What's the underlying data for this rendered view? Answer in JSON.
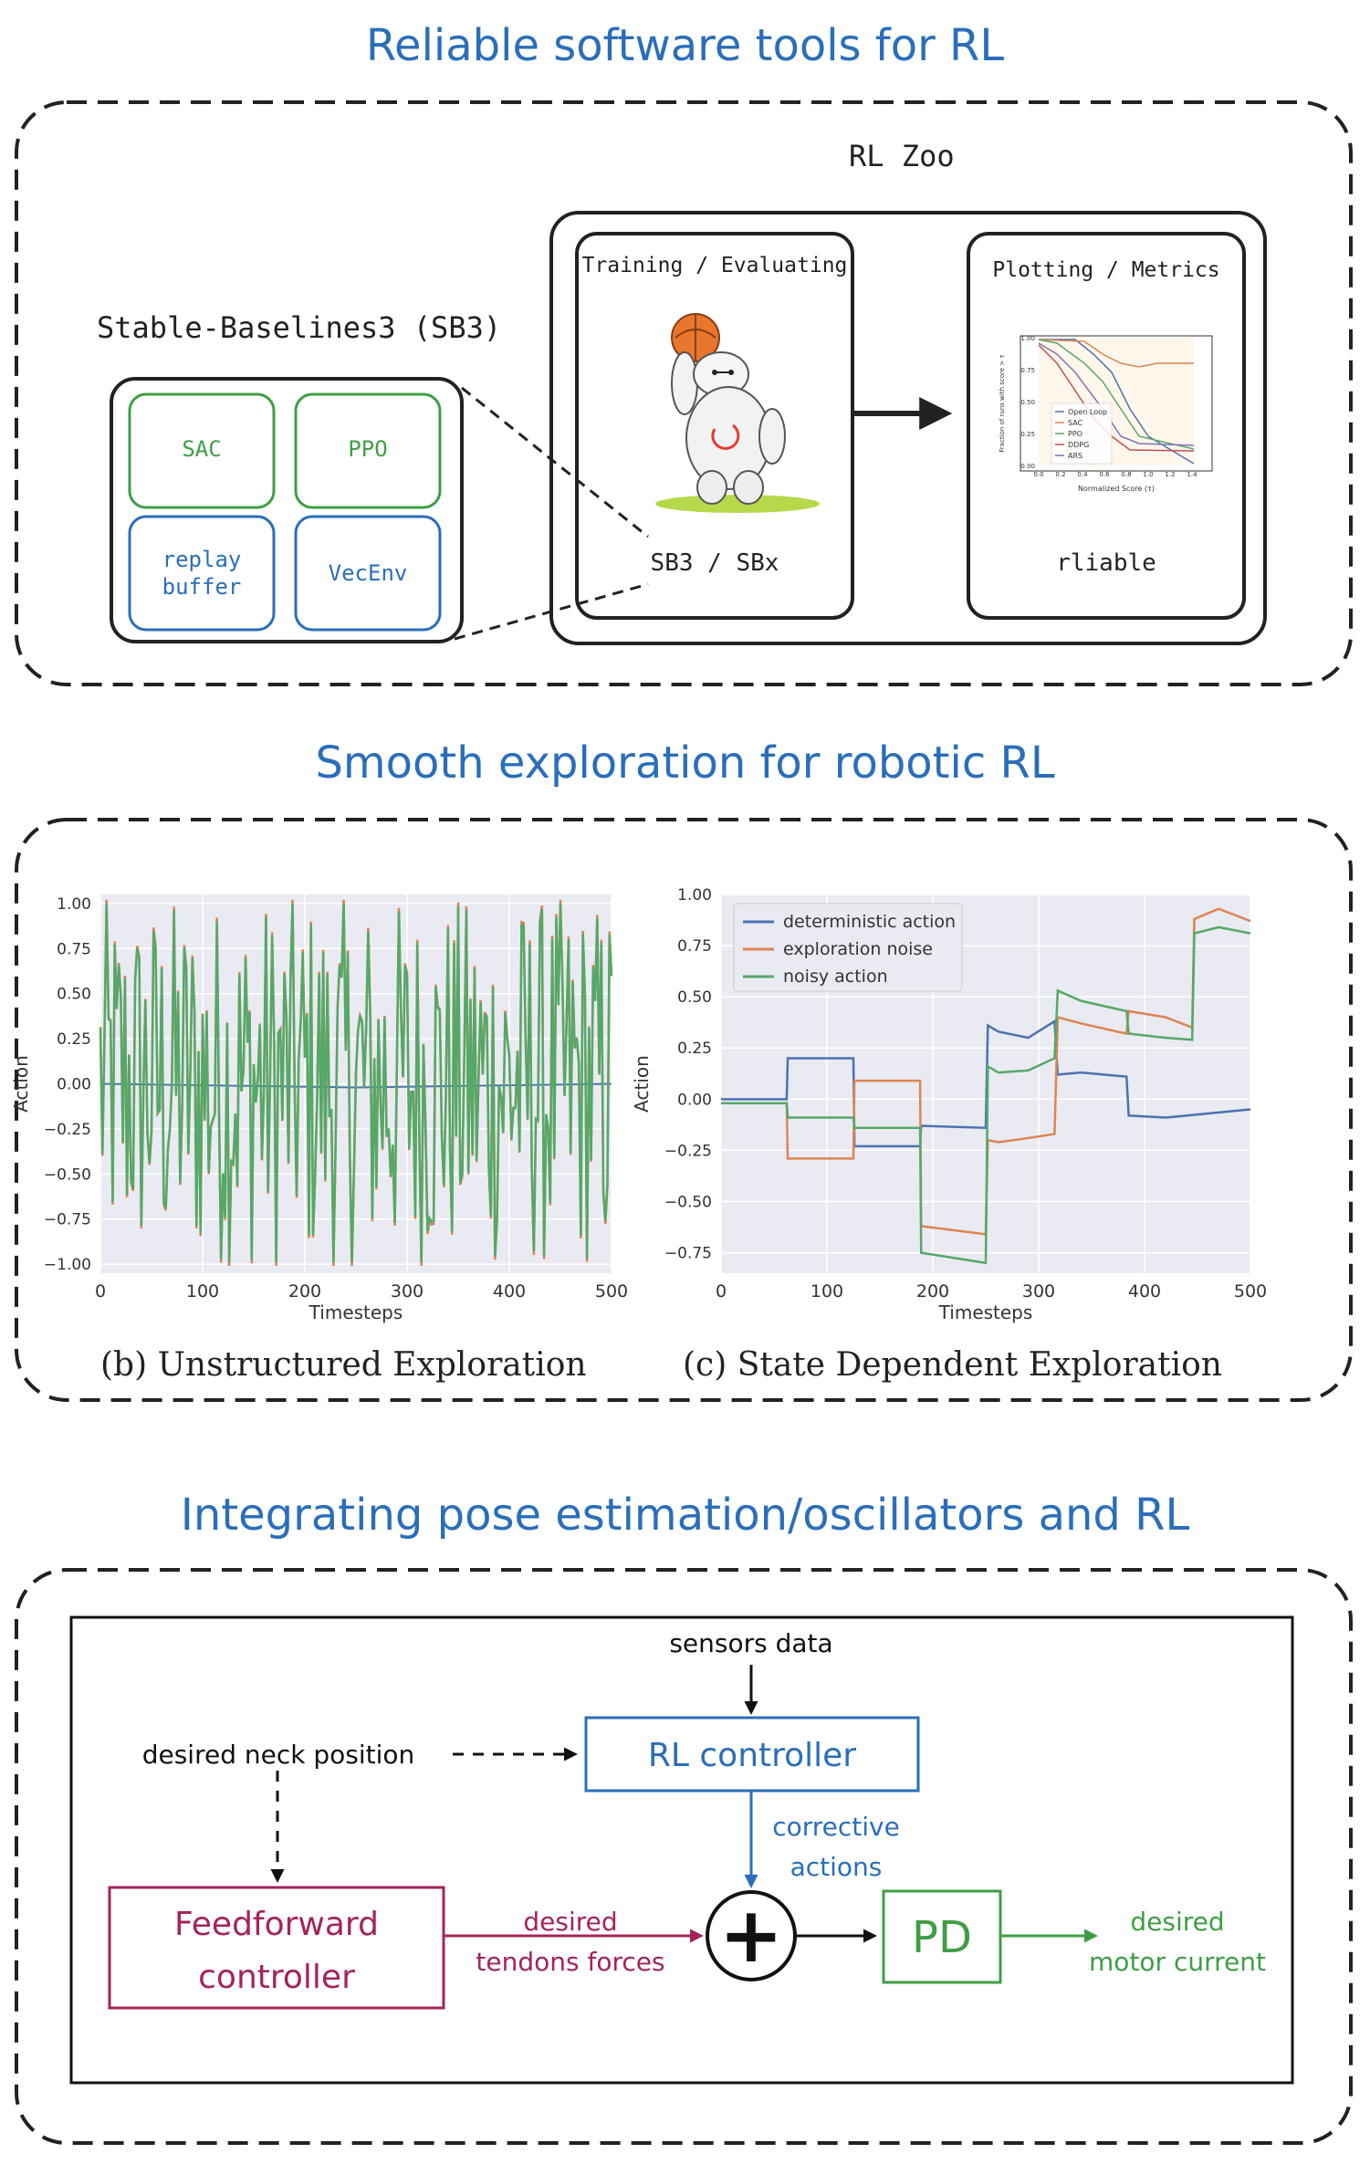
{
  "section1": {
    "title": "Reliable software tools for RL",
    "rl_zoo_label": "RL Zoo",
    "sb3_label": "Stable-Baselines3 (SB3)",
    "modules": [
      "SAC",
      "PPO",
      "replay buffer",
      "VecEnv"
    ],
    "colors": {
      "green": "#3f9e45",
      "blue": "#2a6ebb"
    },
    "training_box": {
      "title": "Training / Evaluating",
      "footer": "SB3 / SBx"
    },
    "plotting_box": {
      "title": "Plotting / Metrics",
      "footer": "rliable"
    },
    "mini_chart": {
      "ylabel": "Fraction of runs with score > τ",
      "xlabel": "Normalized Score (τ)",
      "yticks": [
        "0.00",
        "0.25",
        "0.50",
        "0.75",
        "1.00"
      ],
      "xticks": [
        "0.0",
        "0.2",
        "0.4",
        "0.6",
        "0.8",
        "1.0",
        "1.2",
        "1.4"
      ],
      "legend": [
        "Open Loop",
        "SAC",
        "PPO",
        "DDPG",
        "ARS"
      ]
    }
  },
  "section2": {
    "title": "Smooth exploration for robotic RL",
    "caption_b": "(b) Unstructured Exploration",
    "caption_c": "(c) State Dependent Exploration"
  },
  "chart_data": [
    {
      "type": "line",
      "xlabel": "Timesteps",
      "ylabel": "Action",
      "xlim": [
        0,
        500
      ],
      "ylim": [
        -1.05,
        1.05
      ],
      "xticks": [
        0,
        100,
        200,
        300,
        400,
        500
      ],
      "yticks": [
        1.0,
        0.75,
        0.5,
        0.25,
        0.0,
        -0.25,
        -0.5,
        -0.75,
        -1.0
      ],
      "ytick_labels": [
        "1.00",
        "0.75",
        "0.50",
        "0.25",
        "0.00",
        "−0.25",
        "−0.50",
        "−0.75",
        "−1.00"
      ],
      "series_colors": {
        "deterministic": "#4c72b0",
        "noise": "#dd8452",
        "noisy": "#55a868"
      },
      "series": [
        {
          "key": "deterministic",
          "x": [
            0,
            250,
            500
          ],
          "values": [
            0.0,
            -0.02,
            0.0
          ]
        }
      ],
      "noise_amplitude": 1.0
    },
    {
      "type": "line",
      "xlabel": "Timesteps",
      "ylabel": "Action",
      "xlim": [
        0,
        500
      ],
      "ylim": [
        -0.85,
        1.0
      ],
      "xticks": [
        0,
        100,
        200,
        300,
        400,
        500
      ],
      "yticks": [
        1.0,
        0.75,
        0.5,
        0.25,
        0.0,
        -0.25,
        -0.5,
        -0.75
      ],
      "ytick_labels": [
        "1.00",
        "0.75",
        "0.50",
        "0.25",
        "0.00",
        "−0.25",
        "−0.50",
        "−0.75"
      ],
      "legend": [
        "deterministic action",
        "exploration noise",
        "noisy action"
      ],
      "series": [
        {
          "name": "deterministic action",
          "color": "#4c72b0",
          "x": [
            0,
            62,
            63,
            125,
            126,
            188,
            189,
            250,
            252,
            262,
            290,
            315,
            318,
            340,
            383,
            385,
            420,
            460,
            500
          ],
          "values": [
            0.0,
            0.0,
            0.2,
            0.2,
            -0.23,
            -0.23,
            -0.13,
            -0.14,
            0.36,
            0.33,
            0.3,
            0.38,
            0.12,
            0.13,
            0.11,
            -0.08,
            -0.09,
            -0.07,
            -0.05
          ]
        },
        {
          "name": "exploration noise",
          "color": "#dd8452",
          "x": [
            0,
            62,
            63,
            125,
            126,
            188,
            189,
            250,
            252,
            262,
            290,
            315,
            318,
            340,
            383,
            385,
            420,
            445,
            447,
            470,
            500
          ],
          "values": [
            -0.02,
            -0.02,
            -0.29,
            -0.29,
            0.09,
            0.09,
            -0.62,
            -0.66,
            -0.2,
            -0.21,
            -0.19,
            -0.17,
            0.4,
            0.37,
            0.32,
            0.43,
            0.4,
            0.35,
            0.88,
            0.93,
            0.87
          ]
        },
        {
          "name": "noisy action",
          "color": "#55a868",
          "x": [
            0,
            62,
            63,
            125,
            126,
            188,
            189,
            250,
            252,
            262,
            290,
            315,
            318,
            340,
            383,
            385,
            420,
            445,
            447,
            470,
            500
          ],
          "values": [
            -0.02,
            -0.02,
            -0.09,
            -0.09,
            -0.14,
            -0.14,
            -0.75,
            -0.8,
            0.16,
            0.13,
            0.14,
            0.2,
            0.53,
            0.48,
            0.43,
            0.32,
            0.3,
            0.29,
            0.81,
            0.84,
            0.81
          ]
        }
      ]
    }
  ],
  "section3": {
    "title": "Integrating pose estimation/oscillators and RL",
    "sensors_label": "sensors data",
    "neck_label": "desired neck position",
    "rl_controller": "RL controller",
    "corrective_line1": "corrective",
    "corrective_line2": "actions",
    "ff_line1": "Feedforward",
    "ff_line2": "controller",
    "tendons_line1": "desired",
    "tendons_line2": "tendons forces",
    "pd_label": "PD",
    "motor_line1": "desired",
    "motor_line2": "motor current",
    "sum_symbol": "+",
    "colors": {
      "blue": "#2a6ebb",
      "crimson": "#a3245a",
      "green": "#3f9e45"
    }
  }
}
